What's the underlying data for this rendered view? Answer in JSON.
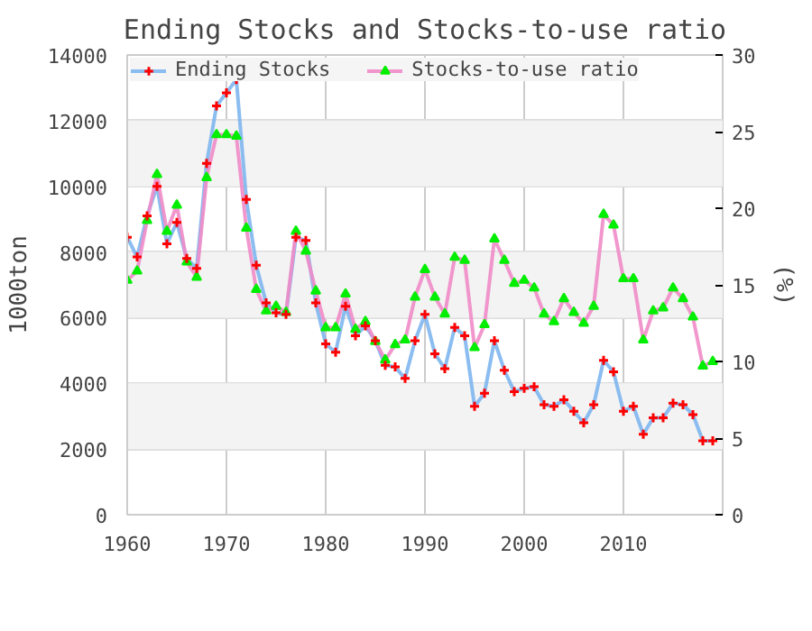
{
  "chart_data": {
    "type": "line",
    "title": "Ending Stocks and Stocks-to-use ratio",
    "ylabel": "1000ton",
    "y2label": "(%)",
    "x": [
      1960,
      1961,
      1962,
      1963,
      1964,
      1965,
      1966,
      1967,
      1968,
      1969,
      1970,
      1971,
      1972,
      1973,
      1974,
      1975,
      1976,
      1977,
      1978,
      1979,
      1980,
      1981,
      1982,
      1983,
      1984,
      1985,
      1986,
      1987,
      1988,
      1989,
      1990,
      1991,
      1992,
      1993,
      1994,
      1995,
      1996,
      1997,
      1998,
      1999,
      2000,
      2001,
      2002,
      2003,
      2004,
      2005,
      2006,
      2007,
      2008,
      2009,
      2010,
      2011,
      2012,
      2013,
      2014,
      2015,
      2016,
      2017,
      2018,
      2019
    ],
    "series": [
      {
        "name": "Ending Stocks",
        "color": "#7eb6f0",
        "colors": [
          "#ff0000",
          "#ff0000",
          "#ff0000",
          "#ff0000",
          "#ff0000",
          "#ff0000",
          "#ff0000",
          "#ff0000",
          "#ff0000",
          "#ff0000",
          "#ff0000",
          "#ff0000",
          "#ff0000",
          "#ff0000",
          "#ff0000",
          "#ff0000",
          "#ff0000",
          "#ff0000",
          "#ff0000",
          "#ff0000",
          "#ff0000",
          "#ff0000",
          "#ff0000",
          "#ff0000",
          "#ff0000",
          "#ff0000",
          "#ff0000",
          "#ff0000",
          "#ff0000",
          "#ff0000",
          "#ff0000",
          "#ff0000",
          "#ff0000",
          "#ff0000",
          "#ff0000",
          "#ff0000",
          "#ff0000",
          "#ff0000",
          "#ff0000",
          "#ff0000",
          "#ff0000",
          "#ff0000",
          "#ff0000",
          "#ff0000",
          "#ff0000",
          "#ff0000",
          "#ff0000",
          "#ff0000",
          "#ff0000",
          "#ff0000",
          "#ff0000",
          "#ff0000",
          "#ff0000",
          "#ff0000",
          "#ff0000",
          "#ff0000",
          "#ff0000",
          "#ff0000",
          "#ff0000",
          "#ff0000"
        ],
        "marker": "cross",
        "values": [
          8450,
          7850,
          9100,
          10000,
          8250,
          8900,
          7800,
          7500,
          10700,
          12450,
          12850,
          13250,
          9600,
          7600,
          6450,
          6150,
          6100,
          8450,
          8350,
          6450,
          5200,
          4950,
          6350,
          5450,
          5750,
          5300,
          4550,
          4500,
          4150,
          5300,
          6100,
          4900,
          4450,
          5700,
          5450,
          3300,
          3700,
          5300,
          4400,
          3750,
          3850,
          3900,
          3350,
          3300,
          3500,
          3150,
          2800,
          3350,
          4700,
          4350,
          3150,
          3300,
          2450,
          2950,
          2950,
          3400,
          3350,
          3050,
          2250,
          2250
        ]
      },
      {
        "name": "Stocks-to-use ratio",
        "color": "#f08cc8",
        "colors": [
          "#00ee00",
          "#00ee00",
          "#00ee00",
          "#00ee00",
          "#00ee00",
          "#00ee00",
          "#00ee00",
          "#00ee00",
          "#00ee00",
          "#00ee00",
          "#00ee00",
          "#00ee00",
          "#00ee00",
          "#00ee00",
          "#00ee00",
          "#00ee00",
          "#00ee00",
          "#00ee00",
          "#00ee00",
          "#00ee00",
          "#00ee00",
          "#00ee00",
          "#00ee00",
          "#00ee00",
          "#00ee00",
          "#00ee00",
          "#00ee00",
          "#00ee00",
          "#00ee00",
          "#00ee00",
          "#00ee00",
          "#00ee00",
          "#00ee00",
          "#00ee00",
          "#00ee00",
          "#00ee00",
          "#00ee00",
          "#00ee00",
          "#00ee00",
          "#00ee00",
          "#00ee00",
          "#00ee00",
          "#00ee00",
          "#00ee00",
          "#00ee00",
          "#00ee00",
          "#00ee00",
          "#00ee00",
          "#00ee00",
          "#00ee00",
          "#00ee00",
          "#00ee00",
          "#00ee00",
          "#00ee00",
          "#00ee00",
          "#00ee00",
          "#00ee00",
          "#00ee00",
          "#00ee00",
          "#00ee00"
        ],
        "marker": "triangle",
        "axis": "y2",
        "values": [
          15.3,
          15.9,
          19.2,
          22.2,
          18.5,
          20.2,
          16.5,
          15.5,
          22.0,
          24.8,
          24.8,
          24.7,
          18.7,
          14.7,
          13.3,
          13.6,
          13.2,
          18.5,
          17.2,
          14.6,
          12.2,
          12.2,
          14.4,
          12.1,
          12.6,
          11.3,
          10.1,
          11.1,
          11.4,
          14.2,
          16.0,
          14.2,
          13.1,
          16.8,
          16.6,
          10.9,
          12.4,
          18.0,
          16.6,
          15.1,
          15.3,
          14.8,
          13.1,
          12.6,
          14.1,
          13.2,
          12.5,
          13.6,
          19.6,
          18.9,
          15.4,
          15.4,
          11.4,
          13.3,
          13.5,
          14.8,
          14.1,
          12.9,
          9.7,
          10.0
        ]
      }
    ],
    "xlim": [
      1960,
      2020
    ],
    "xticks": [
      1960,
      1970,
      1980,
      1990,
      2000,
      2010
    ],
    "ylim": [
      0,
      14000
    ],
    "yticks": [
      0,
      2000,
      4000,
      6000,
      8000,
      10000,
      12000,
      14000
    ],
    "y2lim": [
      0,
      30
    ],
    "y2ticks": [
      0,
      5,
      10,
      15,
      20,
      25,
      30
    ],
    "grid": true,
    "legend": "top left"
  }
}
